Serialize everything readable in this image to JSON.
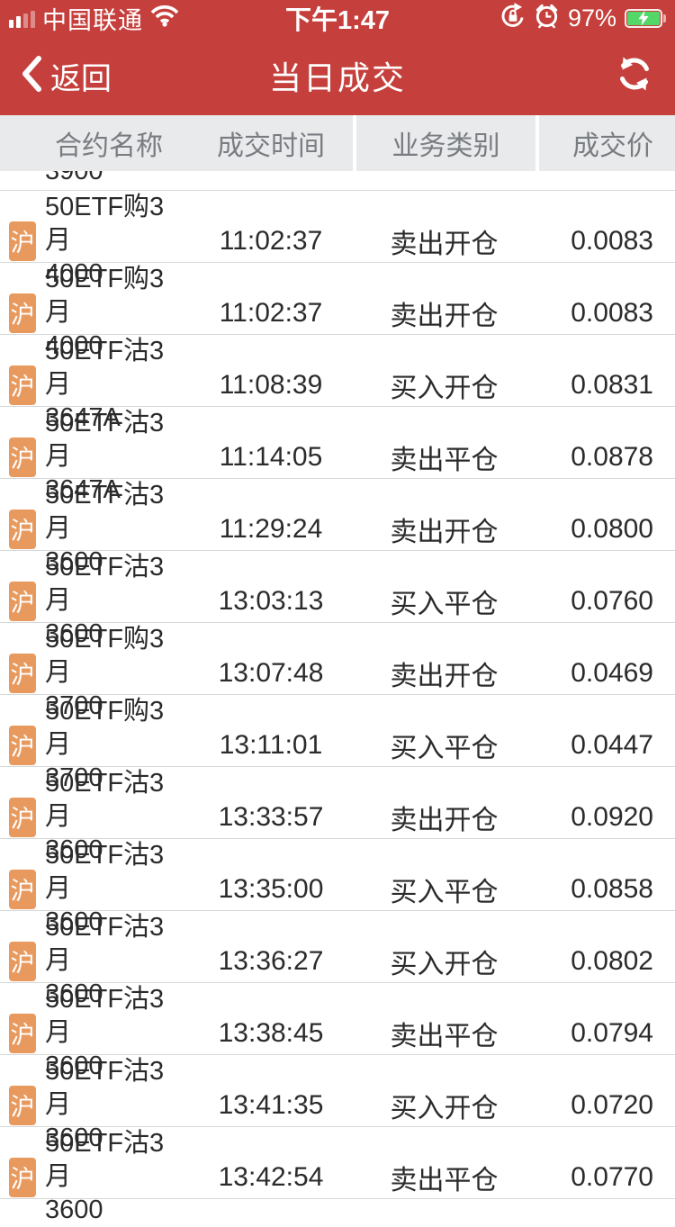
{
  "status_bar": {
    "carrier": "中国联通",
    "time": "下午1:47",
    "battery_percent": "97%"
  },
  "nav": {
    "back_label": "返回",
    "title": "当日成交"
  },
  "table": {
    "headers": {
      "name": "合约名称",
      "time": "成交时间",
      "type": "业务类别",
      "price": "成交价"
    },
    "partial_top_row": {
      "name_line2": "3900"
    },
    "rows": [
      {
        "badge": "沪",
        "name_line1": "50ETF购3月",
        "name_line2": "4000",
        "time": "11:02:37",
        "type": "卖出开仓",
        "price": "0.0083"
      },
      {
        "badge": "沪",
        "name_line1": "50ETF购3月",
        "name_line2": "4000",
        "time": "11:02:37",
        "type": "卖出开仓",
        "price": "0.0083"
      },
      {
        "badge": "沪",
        "name_line1": "50ETF沽3月",
        "name_line2": "3647A",
        "time": "11:08:39",
        "type": "买入开仓",
        "price": "0.0831"
      },
      {
        "badge": "沪",
        "name_line1": "50ETF沽3月",
        "name_line2": "3647A",
        "time": "11:14:05",
        "type": "卖出平仓",
        "price": "0.0878"
      },
      {
        "badge": "沪",
        "name_line1": "50ETF沽3月",
        "name_line2": "3600",
        "time": "11:29:24",
        "type": "卖出开仓",
        "price": "0.0800"
      },
      {
        "badge": "沪",
        "name_line1": "50ETF沽3月",
        "name_line2": "3600",
        "time": "13:03:13",
        "type": "买入平仓",
        "price": "0.0760"
      },
      {
        "badge": "沪",
        "name_line1": "50ETF购3月",
        "name_line2": "3700",
        "time": "13:07:48",
        "type": "卖出开仓",
        "price": "0.0469"
      },
      {
        "badge": "沪",
        "name_line1": "50ETF购3月",
        "name_line2": "3700",
        "time": "13:11:01",
        "type": "买入平仓",
        "price": "0.0447"
      },
      {
        "badge": "沪",
        "name_line1": "50ETF沽3月",
        "name_line2": "3600",
        "time": "13:33:57",
        "type": "卖出开仓",
        "price": "0.0920"
      },
      {
        "badge": "沪",
        "name_line1": "50ETF沽3月",
        "name_line2": "3600",
        "time": "13:35:00",
        "type": "买入平仓",
        "price": "0.0858"
      },
      {
        "badge": "沪",
        "name_line1": "50ETF沽3月",
        "name_line2": "3600",
        "time": "13:36:27",
        "type": "买入开仓",
        "price": "0.0802"
      },
      {
        "badge": "沪",
        "name_line1": "50ETF沽3月",
        "name_line2": "3600",
        "time": "13:38:45",
        "type": "卖出平仓",
        "price": "0.0794"
      },
      {
        "badge": "沪",
        "name_line1": "50ETF沽3月",
        "name_line2": "3600",
        "time": "13:41:35",
        "type": "买入开仓",
        "price": "0.0720"
      },
      {
        "badge": "沪",
        "name_line1": "50ETF沽3月",
        "name_line2": "3600",
        "time": "13:42:54",
        "type": "卖出平仓",
        "price": "0.0770"
      }
    ]
  },
  "colors": {
    "accent_red": "#c5403c",
    "header_gray": "#e8eaec",
    "badge_orange": "#e89a5e",
    "battery_green": "#53d769"
  }
}
